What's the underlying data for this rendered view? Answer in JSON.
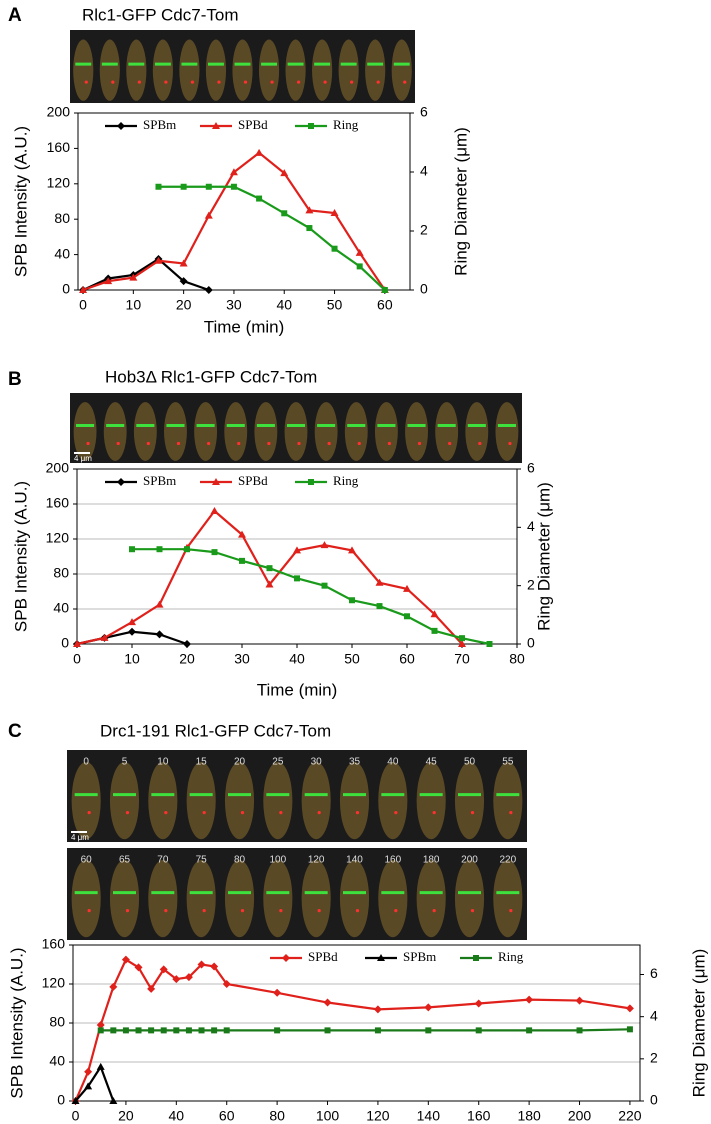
{
  "chart_data": [
    {
      "type": "line",
      "panel": "A",
      "title": "Rlc1-GFP Cdc7-Tom",
      "xlabel": "Time (min)",
      "ylabel": "SPB Intensity (A.U.)",
      "y2label": "Ring Diameter (μm)",
      "xlim": [
        -1,
        65
      ],
      "xticks": [
        0,
        10,
        20,
        30,
        40,
        50,
        60
      ],
      "ylim": [
        0,
        200
      ],
      "yticks": [
        0,
        40,
        80,
        120,
        160,
        200
      ],
      "y2lim": [
        0,
        6
      ],
      "y2ticks": [
        0,
        2,
        4,
        6
      ],
      "grid": false,
      "legend": "upper center",
      "series": [
        {
          "name": "SPBm",
          "color": "#000000",
          "marker": "diamond",
          "x": [
            0,
            5,
            10,
            15,
            20,
            25
          ],
          "values": [
            0,
            13,
            17,
            35,
            10,
            0
          ]
        },
        {
          "name": "SPBd",
          "color": "#e0201b",
          "marker": "triangle",
          "x": [
            0,
            5,
            10,
            15,
            20,
            25,
            30,
            35,
            40,
            45,
            50,
            55,
            60
          ],
          "values": [
            0,
            10,
            14,
            33,
            30,
            84,
            133,
            155,
            132,
            90,
            87,
            42,
            0
          ]
        },
        {
          "name": "Ring",
          "color": "#1a9a1a",
          "marker": "square",
          "axis": "y2",
          "x": [
            15,
            20,
            25,
            30,
            35,
            40,
            45,
            50,
            55,
            60
          ],
          "values": [
            3.5,
            3.5,
            3.5,
            3.5,
            3.1,
            2.6,
            2.1,
            1.4,
            0.8,
            0
          ]
        }
      ]
    },
    {
      "type": "line",
      "panel": "B",
      "title": "Hob3Δ Rlc1-GFP Cdc7-Tom",
      "scale_bar": "4 μm",
      "xlabel": "Time (min)",
      "ylabel": "SPB Intensity (A.U.)",
      "y2label": "Ring Diameter (μm)",
      "xlim": [
        0,
        80
      ],
      "xticks": [
        0,
        10,
        20,
        30,
        40,
        50,
        60,
        70,
        80
      ],
      "ylim": [
        0,
        200
      ],
      "yticks": [
        0,
        40,
        80,
        120,
        160,
        200
      ],
      "y2lim": [
        0,
        6
      ],
      "y2ticks": [
        0,
        2,
        4,
        6
      ],
      "grid": true,
      "legend": "upper center",
      "series": [
        {
          "name": "SPBm",
          "color": "#000000",
          "marker": "diamond",
          "x": [
            0,
            5,
            10,
            15,
            20
          ],
          "values": [
            0,
            7,
            14,
            11,
            0
          ]
        },
        {
          "name": "SPBd",
          "color": "#e0201b",
          "marker": "triangle",
          "x": [
            0,
            5,
            10,
            15,
            20,
            25,
            30,
            35,
            40,
            45,
            50,
            55,
            60,
            65,
            70
          ],
          "values": [
            0,
            7,
            25,
            45,
            110,
            152,
            125,
            68,
            107,
            113,
            107,
            70,
            63,
            34,
            0
          ]
        },
        {
          "name": "Ring",
          "color": "#1a9a1a",
          "marker": "square",
          "axis": "y2",
          "x": [
            10,
            15,
            20,
            25,
            30,
            35,
            40,
            45,
            50,
            55,
            60,
            65,
            70,
            75
          ],
          "values": [
            3.25,
            3.25,
            3.25,
            3.15,
            2.85,
            2.6,
            2.25,
            2.0,
            1.5,
            1.3,
            0.95,
            0.45,
            0.2,
            0
          ]
        }
      ]
    },
    {
      "type": "line",
      "panel": "C",
      "title": "Drc1-191 Rlc1-GFP Cdc7-Tom",
      "scale_bar": "4 μm",
      "frame_labels": [
        [
          "0",
          "5",
          "10",
          "15",
          "20",
          "25",
          "30",
          "35",
          "40",
          "45",
          "50",
          "55"
        ],
        [
          "60",
          "65",
          "70",
          "75",
          "80",
          "100",
          "120",
          "140",
          "160",
          "180",
          "200",
          "220"
        ]
      ],
      "ylabel": "SPB Intensity (A.U.)",
      "y2label": "Ring Diameter (μm)",
      "xlim": [
        -1,
        224
      ],
      "xticks": [
        0,
        20,
        40,
        60,
        80,
        100,
        120,
        140,
        160,
        180,
        200,
        220
      ],
      "ylim": [
        0,
        160
      ],
      "yticks": [
        0,
        40,
        80,
        120,
        160
      ],
      "y2lim": [
        0,
        7.4
      ],
      "y2ticks": [
        0,
        2,
        4,
        6
      ],
      "grid": true,
      "legend": "upper right",
      "series": [
        {
          "name": "SPBd",
          "color": "#e0201b",
          "marker": "diamond",
          "x": [
            0,
            5,
            10,
            15,
            20,
            25,
            30,
            35,
            40,
            45,
            50,
            55,
            60,
            80,
            100,
            120,
            140,
            160,
            180,
            200,
            220
          ],
          "values": [
            0,
            30,
            78,
            117,
            145,
            137,
            115,
            135,
            125,
            127,
            140,
            138,
            120,
            111,
            101,
            94,
            96,
            100,
            104,
            103,
            95
          ]
        },
        {
          "name": "SPBm",
          "color": "#000000",
          "marker": "triangle",
          "x": [
            0,
            5,
            10,
            15
          ],
          "values": [
            0,
            15,
            35,
            0
          ]
        },
        {
          "name": "Ring",
          "color": "#1a7a1a",
          "marker": "square",
          "axis": "y2",
          "x": [
            10,
            15,
            20,
            25,
            30,
            35,
            40,
            45,
            50,
            55,
            60,
            80,
            100,
            120,
            140,
            160,
            180,
            200,
            220
          ],
          "values": [
            3.35,
            3.35,
            3.35,
            3.35,
            3.35,
            3.35,
            3.35,
            3.35,
            3.35,
            3.35,
            3.35,
            3.35,
            3.35,
            3.35,
            3.35,
            3.35,
            3.35,
            3.35,
            3.4
          ]
        }
      ]
    }
  ]
}
